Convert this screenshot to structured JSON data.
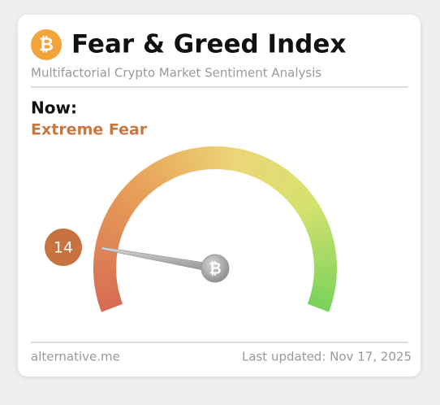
{
  "chart_data": {
    "type": "gauge",
    "title": "Fear & Greed Index",
    "subtitle": "Multifactorial Crypto Market Sentiment Analysis",
    "now_label": "Now:",
    "classification": "Extreme Fear",
    "value": 14,
    "ylim": [
      0,
      100
    ],
    "value_color": "#c8723f",
    "source": "alternative.me",
    "updated": "Last updated: Nov 17, 2025"
  }
}
